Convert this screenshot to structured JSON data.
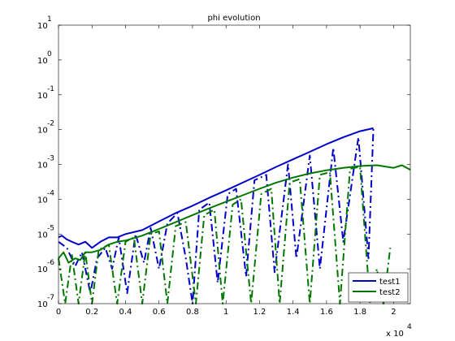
{
  "chart_data": {
    "type": "line",
    "title": "phi evolution",
    "xlabel": "",
    "ylabel": "",
    "x_multiplier": "x 10",
    "x_multiplier_exp": "4",
    "xlim": [
      0,
      21000
    ],
    "ylim": [
      1e-07,
      10
    ],
    "yscale": "log",
    "x_ticks": [
      {
        "value": 0,
        "label": "0"
      },
      {
        "value": 2000,
        "label": "0.2"
      },
      {
        "value": 4000,
        "label": "0.4"
      },
      {
        "value": 6000,
        "label": "0.6"
      },
      {
        "value": 8000,
        "label": "0.8"
      },
      {
        "value": 10000,
        "label": "1"
      },
      {
        "value": 12000,
        "label": "1.2"
      },
      {
        "value": 14000,
        "label": "1.4"
      },
      {
        "value": 16000,
        "label": "1.6"
      },
      {
        "value": 18000,
        "label": "1.8"
      },
      {
        "value": 20000,
        "label": "2"
      }
    ],
    "y_ticks": [
      {
        "exp": -7,
        "base": "10",
        "sup": "-7"
      },
      {
        "exp": -6,
        "base": "10",
        "sup": "-6"
      },
      {
        "exp": -5,
        "base": "10",
        "sup": "-5"
      },
      {
        "exp": -4,
        "base": "10",
        "sup": "-4"
      },
      {
        "exp": -3,
        "base": "10",
        "sup": "-3"
      },
      {
        "exp": -2,
        "base": "10",
        "sup": "-2"
      },
      {
        "exp": -1,
        "base": "10",
        "sup": "-1"
      },
      {
        "exp": 0,
        "base": "10",
        "sup": "0"
      },
      {
        "exp": 1,
        "base": "10",
        "sup": "1"
      }
    ],
    "grid": false,
    "legend_position": "bottom-right",
    "series": [
      {
        "name": "test1",
        "color": "#0000c8",
        "style": "solid",
        "x": [
          0,
          200,
          500,
          800,
          1200,
          1600,
          2000,
          2500,
          3000,
          3500,
          4000,
          5000,
          6000,
          7000,
          8000,
          9000,
          10000,
          11000,
          12000,
          13000,
          14000,
          15000,
          16000,
          17000,
          18000,
          18800
        ],
        "y": [
          8e-06,
          9e-06,
          7e-06,
          6e-06,
          5e-06,
          6e-06,
          4e-06,
          6e-06,
          8e-06,
          8e-06,
          1e-05,
          1.3e-05,
          2.3e-05,
          4e-05,
          6.5e-05,
          0.00011,
          0.00018,
          0.0003,
          0.0005,
          0.00085,
          0.0014,
          0.0023,
          0.0038,
          0.006,
          0.009,
          0.011
        ]
      },
      {
        "name": "",
        "color": "#0000c8",
        "style": "dashdot",
        "x": [
          0,
          500,
          1000,
          1400,
          1900,
          2300,
          2800,
          3200,
          3600,
          4100,
          4600,
          5100,
          5500,
          6000,
          6500,
          7100,
          7600,
          8000,
          8400,
          9000,
          9500,
          10100,
          10600,
          11200,
          11700,
          12400,
          12900,
          13700,
          14200,
          15000,
          15600,
          16400,
          17000,
          17900,
          18500,
          18800
        ],
        "y": [
          6e-06,
          4e-06,
          1.2e-06,
          3e-06,
          2e-07,
          2e-06,
          4e-06,
          1e-06,
          8e-06,
          2e-07,
          1e-05,
          1.5e-06,
          1.5e-05,
          1e-06,
          2e-05,
          4e-05,
          2e-06,
          1e-07,
          5e-05,
          8e-05,
          4e-07,
          0.00014,
          0.0002,
          6e-07,
          0.00035,
          0.0005,
          8e-07,
          0.001,
          2e-06,
          0.0018,
          1e-06,
          0.003,
          6e-06,
          0.006,
          2e-06,
          0.011
        ]
      },
      {
        "name": "test2",
        "color": "#007800",
        "style": "solid",
        "x": [
          0,
          300,
          600,
          1000,
          1300,
          1600,
          2000,
          2500,
          3000,
          3500,
          4000,
          5000,
          6000,
          7000,
          8000,
          9000,
          10000,
          11000,
          12000,
          13000,
          14000,
          15000,
          16000,
          17000,
          18000,
          19000,
          20000,
          20500,
          21000
        ],
        "y": [
          2e-06,
          3e-06,
          1.5e-06,
          2e-06,
          1.8e-06,
          3e-06,
          3e-06,
          3.5e-06,
          5e-06,
          6e-06,
          6.5e-06,
          9e-06,
          1.4e-05,
          2.2e-05,
          3.5e-05,
          5.5e-05,
          8.5e-05,
          0.00013,
          0.0002,
          0.0003,
          0.00042,
          0.00055,
          0.00068,
          0.0008,
          0.0009,
          0.00095,
          0.0008,
          0.00095,
          0.0007
        ]
      },
      {
        "name": "",
        "color": "#007800",
        "style": "dashdot",
        "x": [
          0,
          400,
          800,
          1200,
          1600,
          2000,
          2400,
          3000,
          3500,
          4000,
          4500,
          5000,
          5500,
          6000,
          6500,
          7000,
          7600,
          8200,
          8700,
          9300,
          9800,
          10400,
          10900,
          11500,
          12100,
          12700,
          13200,
          13800,
          14400,
          15000,
          15600,
          16200,
          16800,
          17400,
          18000,
          18600,
          19000,
          19400,
          19800
        ],
        "y": [
          2e-06,
          1e-07,
          2.5e-06,
          1e-07,
          3e-06,
          1e-07,
          3.5e-06,
          5e-06,
          1e-07,
          6e-06,
          8e-06,
          1e-07,
          1e-05,
          1.2e-05,
          1e-07,
          1.7e-05,
          2.2e-05,
          1e-07,
          3.5e-05,
          5e-05,
          1e-07,
          7e-05,
          0.0001,
          1e-07,
          0.00014,
          0.0002,
          1e-07,
          0.0003,
          0.00038,
          1e-07,
          0.0005,
          0.0006,
          1e-07,
          0.00075,
          0.00085,
          1e-07,
          1e-06,
          1e-07,
          4e-06
        ]
      }
    ]
  }
}
